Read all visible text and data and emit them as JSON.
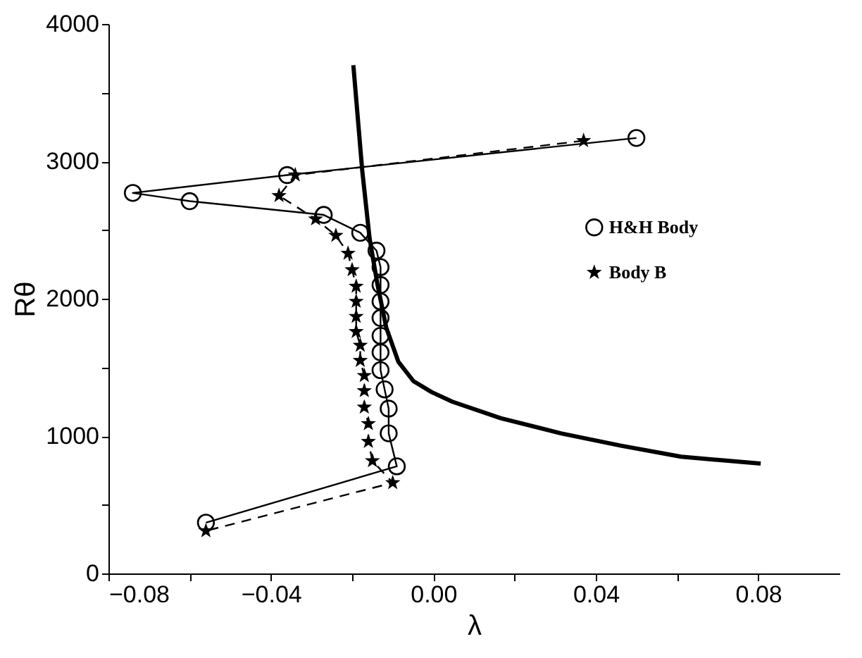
{
  "chart_data": {
    "type": "line",
    "xlabel": "λ",
    "ylabel": "Rθ",
    "xlim": [
      -0.08,
      0.1
    ],
    "ylim": [
      0,
      4000
    ],
    "xticks": [
      {
        "value": -0.08,
        "label": "−0.08"
      },
      {
        "value": -0.06,
        "label": null
      },
      {
        "value": -0.04,
        "label": "−0.04"
      },
      {
        "value": -0.02,
        "label": null
      },
      {
        "value": 0.0,
        "label": "0.00"
      },
      {
        "value": 0.02,
        "label": null
      },
      {
        "value": 0.04,
        "label": "0.04"
      },
      {
        "value": 0.06,
        "label": null
      },
      {
        "value": 0.08,
        "label": "0.08"
      }
    ],
    "yticks": [
      0,
      {
        "value": 500,
        "label": null
      },
      1000,
      {
        "value": 1500,
        "label": null
      },
      2000,
      {
        "value": 2500,
        "label": null
      },
      3000,
      {
        "value": 3500,
        "label": null
      },
      4000
    ],
    "grid": false,
    "legend": "right",
    "series": [
      {
        "color": "#000000",
        "marker": "none",
        "line_style": "solid",
        "x": [
          -0.0197,
          -0.0175,
          -0.0157,
          -0.0138,
          -0.0116,
          -0.0086,
          -0.0049,
          -0.0004,
          0.0047,
          0.0166,
          0.0314,
          0.0462,
          0.061,
          0.0806
        ],
        "values": [
          3700,
          2930,
          2440,
          2110,
          1790,
          1540,
          1400,
          1320,
          1250,
          1130,
          1020,
          930,
          850,
          800
        ]
      },
      {
        "name": "H&H Body",
        "color": "#000000",
        "marker": "circle",
        "line_style": "solid",
        "x": [
          0.05,
          -0.036,
          -0.074,
          -0.06,
          -0.027,
          -0.018,
          -0.014,
          -0.013,
          -0.013,
          -0.013,
          -0.013,
          -0.013,
          -0.013,
          -0.013,
          -0.012,
          -0.011,
          -0.011,
          -0.009,
          -0.056
        ],
        "values": [
          3170,
          2900,
          2770,
          2710,
          2610,
          2480,
          2350,
          2230,
          2100,
          1980,
          1860,
          1730,
          1610,
          1480,
          1340,
          1200,
          1020,
          780,
          370
        ]
      },
      {
        "name": "Body B",
        "color": "#000000",
        "marker": "star",
        "line_style": "dashed",
        "x": [
          0.037,
          -0.034,
          -0.038,
          -0.029,
          -0.024,
          -0.021,
          -0.02,
          -0.019,
          -0.019,
          -0.019,
          -0.019,
          -0.018,
          -0.018,
          -0.017,
          -0.017,
          -0.017,
          -0.016,
          -0.016,
          -0.015,
          -0.01,
          -0.056
        ],
        "values": [
          3150,
          2900,
          2750,
          2580,
          2460,
          2330,
          2210,
          2090,
          1980,
          1870,
          1760,
          1660,
          1550,
          1440,
          1330,
          1210,
          1090,
          960,
          820,
          660,
          310
        ]
      }
    ]
  }
}
